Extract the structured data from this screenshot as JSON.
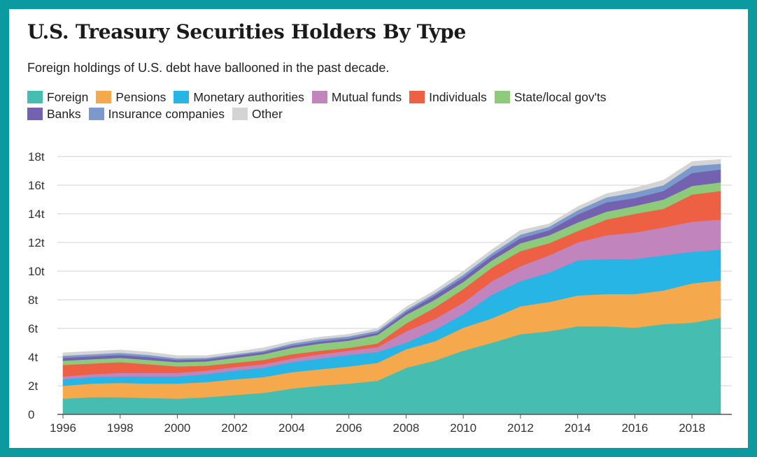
{
  "title": "U.S. Treasury Securities Holders By Type",
  "subtitle": "Foreign holdings of U.S. debt have ballooned in the past decade.",
  "chart_data": {
    "type": "area",
    "stacked": true,
    "title": "U.S. Treasury Securities Holders By Type",
    "subtitle": "Foreign holdings of U.S. debt have ballooned in the past decade.",
    "xlabel": "",
    "ylabel": "",
    "x": [
      1996,
      1997,
      1998,
      1999,
      2000,
      2001,
      2002,
      2003,
      2004,
      2005,
      2006,
      2007,
      2008,
      2009,
      2010,
      2011,
      2012,
      2013,
      2014,
      2015,
      2016,
      2017,
      2018,
      2019
    ],
    "xlim": [
      1996,
      2019
    ],
    "ylim": [
      0,
      18
    ],
    "x_ticks": [
      "1996",
      "1998",
      "2000",
      "2002",
      "2004",
      "2006",
      "2008",
      "2010",
      "2012",
      "2014",
      "2016",
      "2018"
    ],
    "y_ticks": [
      "0",
      "2t",
      "4t",
      "6t",
      "8t",
      "10t",
      "12t",
      "14t",
      "16t",
      "18t"
    ],
    "grid": "horizontal",
    "legend_position": "top",
    "series": [
      {
        "name": "Foreign",
        "color": "#45bdb0",
        "values": [
          1.1,
          1.2,
          1.2,
          1.15,
          1.1,
          1.2,
          1.35,
          1.5,
          1.8,
          2.0,
          2.15,
          2.35,
          3.25,
          3.75,
          4.45,
          5.0,
          5.6,
          5.8,
          6.15,
          6.15,
          6.05,
          6.3,
          6.4,
          6.75
        ]
      },
      {
        "name": "Pensions",
        "color": "#f6a94c",
        "values": [
          0.9,
          0.95,
          1.0,
          1.0,
          1.05,
          1.05,
          1.1,
          1.1,
          1.15,
          1.15,
          1.2,
          1.25,
          1.3,
          1.35,
          1.6,
          1.7,
          1.95,
          2.05,
          2.15,
          2.25,
          2.35,
          2.35,
          2.75,
          2.6
        ]
      },
      {
        "name": "Monetary authorities",
        "color": "#27b5e5",
        "values": [
          0.45,
          0.45,
          0.45,
          0.5,
          0.5,
          0.55,
          0.6,
          0.65,
          0.7,
          0.75,
          0.8,
          0.75,
          0.45,
          0.8,
          0.95,
          1.65,
          1.75,
          2.05,
          2.45,
          2.45,
          2.45,
          2.45,
          2.2,
          2.15
        ]
      },
      {
        "name": "Mutual funds",
        "color": "#c284bd",
        "values": [
          0.2,
          0.2,
          0.25,
          0.25,
          0.25,
          0.25,
          0.25,
          0.25,
          0.25,
          0.3,
          0.3,
          0.35,
          0.8,
          0.75,
          0.8,
          0.95,
          1.05,
          1.2,
          1.25,
          1.65,
          1.85,
          1.95,
          2.1,
          2.1
        ]
      },
      {
        "name": "Individuals",
        "color": "#ee6044",
        "values": [
          0.8,
          0.75,
          0.75,
          0.6,
          0.45,
          0.35,
          0.3,
          0.3,
          0.3,
          0.25,
          0.2,
          0.25,
          0.55,
          0.8,
          0.95,
          0.95,
          1.05,
          0.85,
          0.8,
          1.1,
          1.3,
          1.3,
          1.9,
          2.0
        ]
      },
      {
        "name": "State/local gov'ts",
        "color": "#8dcb7b",
        "values": [
          0.3,
          0.3,
          0.3,
          0.3,
          0.3,
          0.3,
          0.35,
          0.4,
          0.45,
          0.5,
          0.5,
          0.6,
          0.6,
          0.55,
          0.5,
          0.5,
          0.55,
          0.55,
          0.6,
          0.55,
          0.55,
          0.65,
          0.6,
          0.6
        ]
      },
      {
        "name": "Banks",
        "color": "#7461b0",
        "values": [
          0.2,
          0.2,
          0.2,
          0.2,
          0.15,
          0.15,
          0.15,
          0.15,
          0.15,
          0.15,
          0.15,
          0.15,
          0.2,
          0.3,
          0.3,
          0.3,
          0.35,
          0.35,
          0.55,
          0.65,
          0.55,
          0.6,
          0.9,
          0.9
        ]
      },
      {
        "name": "Insurance companies",
        "color": "#7b9acb",
        "values": [
          0.15,
          0.15,
          0.15,
          0.15,
          0.12,
          0.1,
          0.1,
          0.1,
          0.15,
          0.15,
          0.15,
          0.15,
          0.15,
          0.15,
          0.2,
          0.2,
          0.25,
          0.25,
          0.3,
          0.35,
          0.4,
          0.4,
          0.5,
          0.4
        ]
      },
      {
        "name": "Other",
        "color": "#d4d4d4",
        "values": [
          0.2,
          0.2,
          0.2,
          0.2,
          0.18,
          0.15,
          0.15,
          0.2,
          0.15,
          0.15,
          0.15,
          0.15,
          0.2,
          0.2,
          0.25,
          0.25,
          0.3,
          0.2,
          0.25,
          0.25,
          0.3,
          0.35,
          0.3,
          0.3
        ]
      }
    ]
  }
}
